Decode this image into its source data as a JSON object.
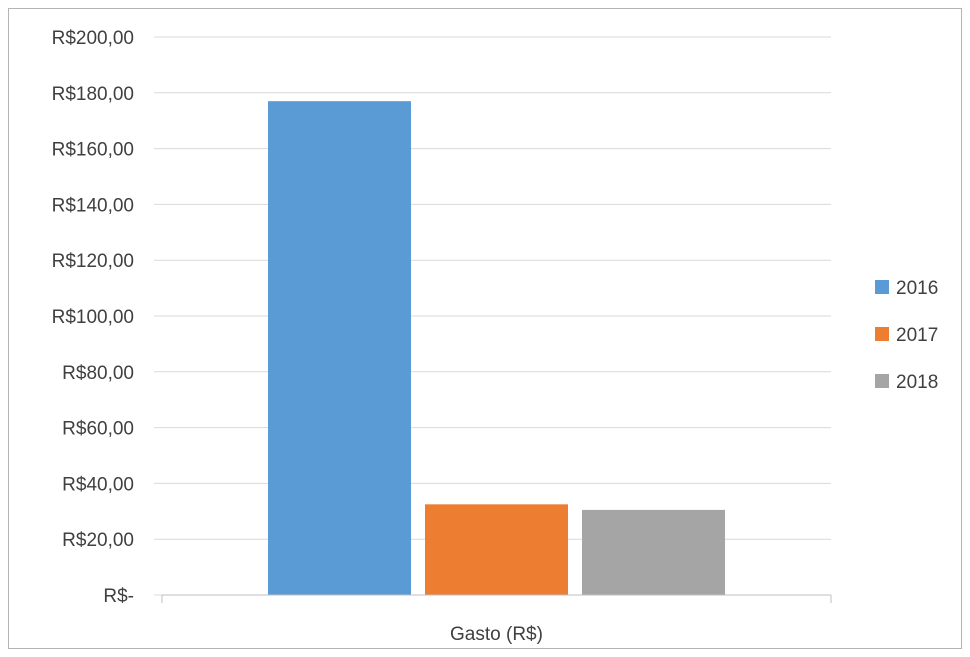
{
  "chart_data": {
    "type": "bar",
    "categories": [
      "Gasto (R$)"
    ],
    "series": [
      {
        "name": "2016",
        "values": [
          177
        ],
        "color": "#5b9bd5"
      },
      {
        "name": "2017",
        "values": [
          32.5
        ],
        "color": "#ed7d31"
      },
      {
        "name": "2018",
        "values": [
          30.5
        ],
        "color": "#a5a5a5"
      }
    ],
    "ylim": [
      0,
      200
    ],
    "yticks": [
      0,
      20,
      40,
      60,
      80,
      100,
      120,
      140,
      160,
      180,
      200
    ],
    "ytick_labels": [
      "R$-",
      "R$20,00",
      "R$40,00",
      "R$60,00",
      "R$80,00",
      "R$100,00",
      "R$120,00",
      "R$140,00",
      "R$160,00",
      "R$180,00",
      "R$200,00"
    ],
    "grid": true,
    "legend_position": "right"
  }
}
